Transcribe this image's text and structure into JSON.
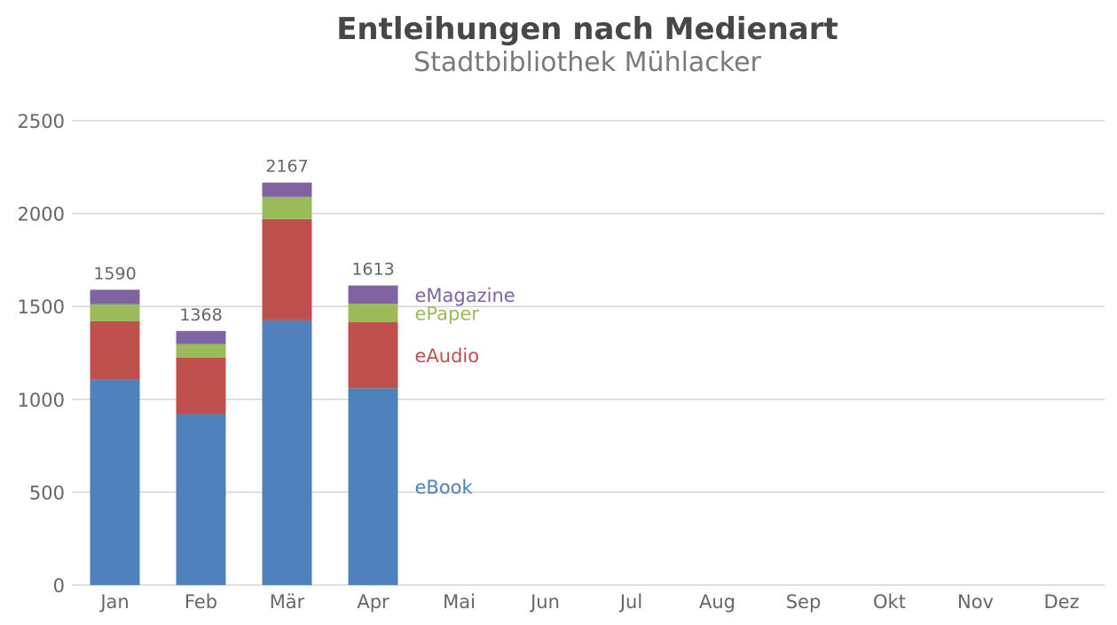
{
  "chart_data": {
    "type": "bar",
    "stacked": true,
    "title": "Entleihungen nach Medienart",
    "subtitle": "Stadtbibliothek Mühlacker",
    "categories": [
      "Jan",
      "Feb",
      "Mär",
      "Apr",
      "Mai",
      "Jun",
      "Jul",
      "Aug",
      "Sep",
      "Okt",
      "Nov",
      "Dez"
    ],
    "series": [
      {
        "name": "eBook",
        "color": "#4f81bd",
        "values": [
          1105,
          920,
          1425,
          1060,
          null,
          null,
          null,
          null,
          null,
          null,
          null,
          null
        ]
      },
      {
        "name": "eAudio",
        "color": "#c0504d",
        "values": [
          315,
          305,
          545,
          355,
          null,
          null,
          null,
          null,
          null,
          null,
          null,
          null
        ]
      },
      {
        "name": "ePaper",
        "color": "#9bbb59",
        "values": [
          92,
          73,
          120,
          100,
          null,
          null,
          null,
          null,
          null,
          null,
          null,
          null
        ]
      },
      {
        "name": "eMagazine",
        "color": "#8064a2",
        "values": [
          78,
          70,
          77,
          98,
          null,
          null,
          null,
          null,
          null,
          null,
          null,
          null
        ]
      }
    ],
    "totals": [
      "1590",
      "1368",
      "2167",
      "1613",
      null,
      null,
      null,
      null,
      null,
      null,
      null,
      null
    ],
    "y_ticks": [
      "0",
      "500",
      "1000",
      "1500",
      "2000",
      "2500"
    ],
    "ylim": [
      0,
      2500
    ],
    "grid": true,
    "legend": "inline-right-of-last-bar"
  }
}
